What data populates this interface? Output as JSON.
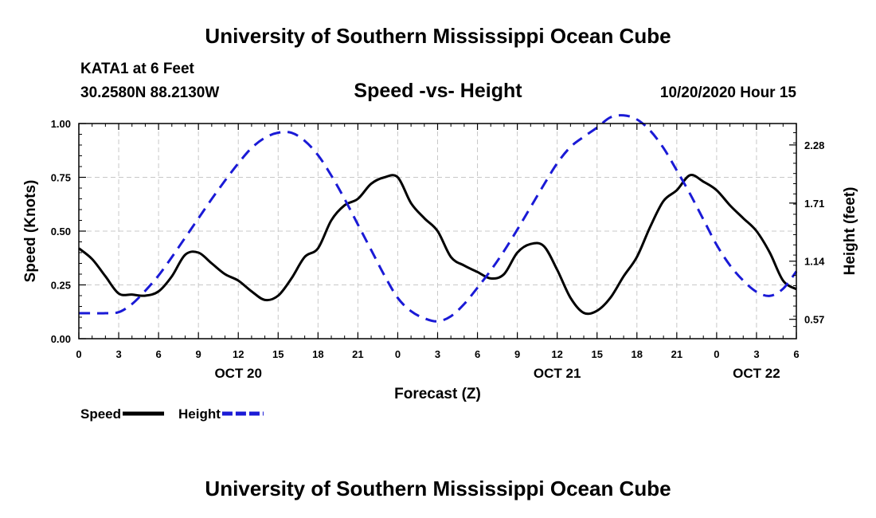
{
  "page": {
    "title_top": "University of Southern Mississippi Ocean Cube",
    "title_bottom": "University of Southern Mississippi Ocean Cube",
    "station": "KATA1 at 6 Feet",
    "coordinates": "30.2580N 88.2130W",
    "timestamp": "10/20/2020 Hour 15"
  },
  "chart_data": {
    "type": "line",
    "title": "Speed -vs- Height",
    "xlabel": "Forecast (Z)",
    "ylabel_left": "Speed (Knots)",
    "ylabel_right": "Height (feet)",
    "xlim": [
      0,
      54
    ],
    "ylim_left": [
      0,
      1
    ],
    "ylim_right": [
      0.38,
      2.49
    ],
    "grid": true,
    "x_ticks": [
      0,
      3,
      6,
      9,
      12,
      15,
      18,
      21,
      24,
      27,
      30,
      33,
      36,
      39,
      42,
      45,
      48,
      51,
      54
    ],
    "x_tick_labels": [
      "0",
      "3",
      "6",
      "9",
      "12",
      "15",
      "18",
      "21",
      "0",
      "3",
      "6",
      "9",
      "12",
      "15",
      "18",
      "21",
      "0",
      "3",
      "6"
    ],
    "y_left_ticks": [
      0,
      0.25,
      0.5,
      0.75,
      1.0
    ],
    "y_left_tick_labels": [
      "0.00",
      "0.25",
      "0.50",
      "0.75",
      "1.00"
    ],
    "y_right_ticks": [
      0.57,
      1.14,
      1.71,
      2.28
    ],
    "y_right_tick_labels": [
      "0.57",
      "1.14",
      "1.71",
      "2.28"
    ],
    "date_labels": [
      {
        "x": 12,
        "label": "OCT 20"
      },
      {
        "x": 36,
        "label": "OCT 21"
      },
      {
        "x": 51,
        "label": "OCT 22"
      }
    ],
    "series": [
      {
        "name": "Speed",
        "axis": "left",
        "color": "#000000",
        "dash": false,
        "x": [
          0,
          1,
          2,
          3,
          4,
          5,
          6,
          7,
          8,
          9,
          10,
          11,
          12,
          13,
          14,
          15,
          16,
          17,
          18,
          19,
          20,
          21,
          22,
          23,
          24,
          25,
          26,
          27,
          28,
          29,
          30,
          31,
          32,
          33,
          34,
          35,
          36,
          37,
          38,
          39,
          40,
          41,
          42,
          43,
          44,
          45,
          46,
          47,
          48,
          49,
          50,
          51,
          52,
          53,
          54
        ],
        "values": [
          0.42,
          0.37,
          0.29,
          0.21,
          0.205,
          0.2,
          0.22,
          0.29,
          0.39,
          0.4,
          0.35,
          0.3,
          0.27,
          0.22,
          0.18,
          0.2,
          0.28,
          0.38,
          0.42,
          0.55,
          0.62,
          0.65,
          0.72,
          0.75,
          0.75,
          0.63,
          0.56,
          0.5,
          0.38,
          0.34,
          0.31,
          0.28,
          0.3,
          0.4,
          0.44,
          0.43,
          0.32,
          0.19,
          0.12,
          0.13,
          0.19,
          0.29,
          0.38,
          0.52,
          0.64,
          0.69,
          0.76,
          0.73,
          0.69,
          0.62,
          0.56,
          0.5,
          0.4,
          0.27,
          0.23
        ]
      },
      {
        "name": "Height",
        "axis": "right",
        "color": "#1a1ad6",
        "dash": true,
        "x": [
          0,
          1,
          2,
          3,
          4,
          5,
          6,
          7,
          8,
          9,
          10,
          11,
          12,
          13,
          14,
          15,
          16,
          17,
          18,
          19,
          20,
          21,
          22,
          23,
          24,
          25,
          26,
          27,
          28,
          29,
          30,
          31,
          32,
          33,
          34,
          35,
          36,
          37,
          38,
          39,
          40,
          41,
          42,
          43,
          44,
          45,
          46,
          47,
          48,
          49,
          50,
          51,
          52,
          53,
          54
        ],
        "values": [
          0.63,
          0.63,
          0.63,
          0.64,
          0.72,
          0.85,
          1.0,
          1.18,
          1.37,
          1.56,
          1.75,
          1.93,
          2.1,
          2.25,
          2.35,
          2.4,
          2.4,
          2.32,
          2.18,
          1.98,
          1.75,
          1.5,
          1.25,
          1.0,
          0.78,
          0.65,
          0.58,
          0.55,
          0.6,
          0.72,
          0.88,
          1.05,
          1.24,
          1.45,
          1.67,
          1.89,
          2.1,
          2.26,
          2.36,
          2.45,
          2.55,
          2.57,
          2.53,
          2.42,
          2.25,
          2.03,
          1.8,
          1.55,
          1.3,
          1.1,
          0.95,
          0.84,
          0.8,
          0.87,
          1.04
        ]
      }
    ],
    "legend": [
      {
        "label": "Speed",
        "color": "#000000",
        "dash": false
      },
      {
        "label": "Height",
        "color": "#1a1ad6",
        "dash": true
      }
    ],
    "legend_position": "bottom-left"
  }
}
